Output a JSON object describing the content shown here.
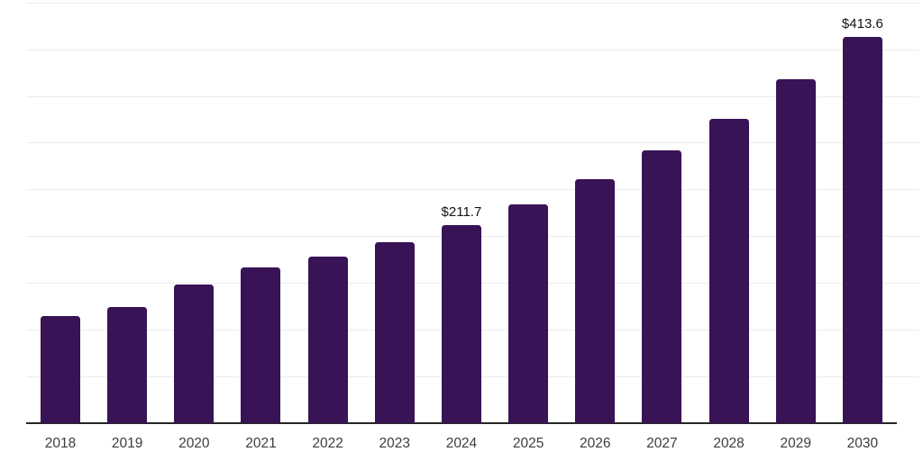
{
  "chart_data": {
    "type": "bar",
    "title": "",
    "categories": [
      "2018",
      "2019",
      "2020",
      "2021",
      "2022",
      "2023",
      "2024",
      "2025",
      "2026",
      "2027",
      "2028",
      "2029",
      "2030"
    ],
    "values": [
      114.5,
      124.2,
      148.3,
      167.0,
      178.3,
      193.6,
      211.7,
      233.6,
      260.8,
      291.8,
      325.8,
      367.4,
      413.6
    ],
    "point_labels": [
      "",
      "",
      "",
      "",
      "",
      "",
      "$211.7",
      "",
      "",
      "",
      "",
      "",
      "$413.6"
    ],
    "value_prefix": "$",
    "xlabel": "",
    "ylabel": "",
    "ylim": [
      0,
      450
    ],
    "ytick_step": 50,
    "y_axis_labels_visible": false,
    "grid": "horizontal",
    "legend": "none",
    "colors": {
      "bar": "#381355",
      "gridline": "#ececec",
      "axis_line": "#262626",
      "tick_label": "#3d3d3d",
      "value_label": "#121212",
      "background": "#ffffff"
    }
  }
}
